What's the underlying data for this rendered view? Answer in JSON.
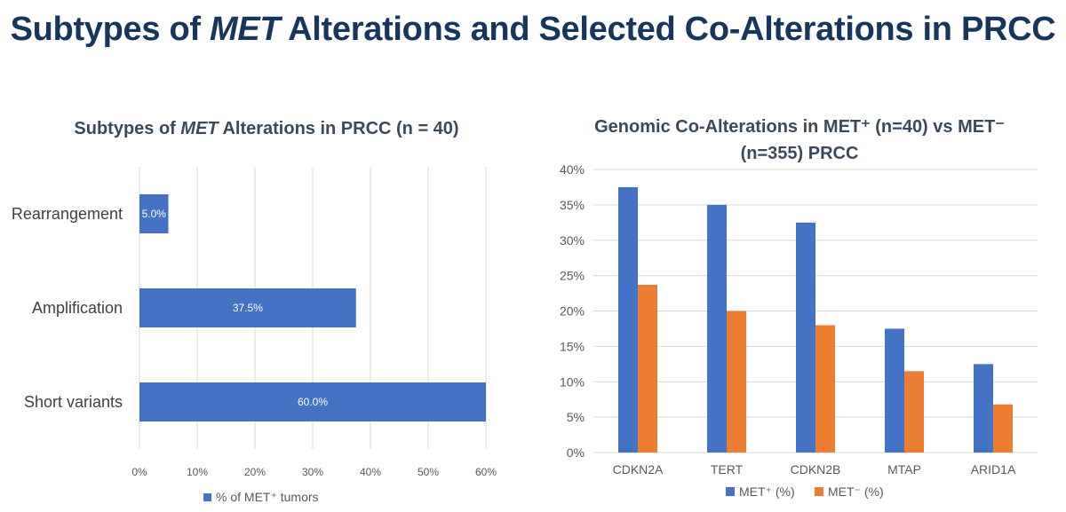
{
  "slide": {
    "title_prefix": "Subtypes of ",
    "title_em": "MET",
    "title_suffix": " Alterations and Selected Co-Alterations in PRCC"
  },
  "colors": {
    "title": "#17365d",
    "met_pos": "#4472c4",
    "met_neg": "#ed7d31",
    "axis_text": "#595959",
    "grid": "#d9d9d9"
  },
  "chart_data": [
    {
      "type": "bar",
      "orientation": "horizontal",
      "title_prefix": "Subtypes of ",
      "title_em": "MET",
      "title_suffix": " Alterations in PRCC (n = 40)",
      "categories": [
        "Rearrangement",
        "Amplification",
        "Short variants"
      ],
      "series": [
        {
          "name": "% of MET⁺ tumors",
          "values": [
            5.0,
            37.5,
            60.0
          ],
          "labels": [
            "5.0%",
            "37.5%",
            "60.0%"
          ]
        }
      ],
      "xlim": [
        0,
        60
      ],
      "xticks": [
        "0%",
        "10%",
        "20%",
        "30%",
        "40%",
        "50%",
        "60%"
      ],
      "grid": true,
      "legend": "bottom"
    },
    {
      "type": "bar",
      "orientation": "vertical",
      "title_line1": "Genomic Co-Alterations in MET⁺ (n=40) vs MET⁻",
      "title_line2": "(n=355) PRCC",
      "categories": [
        "CDKN2A",
        "TERT",
        "CDKN2B",
        "MTAP",
        "ARID1A"
      ],
      "series": [
        {
          "name": "MET⁺ (%)",
          "values": [
            37.5,
            35.0,
            32.5,
            17.5,
            12.5
          ]
        },
        {
          "name": "MET⁻ (%)",
          "values": [
            23.7,
            20.0,
            18.0,
            11.5,
            6.8
          ]
        }
      ],
      "ylim": [
        0,
        40
      ],
      "yticks": [
        "0%",
        "5%",
        "10%",
        "15%",
        "20%",
        "25%",
        "30%",
        "35%",
        "40%"
      ],
      "grid": true,
      "legend": "bottom"
    }
  ]
}
